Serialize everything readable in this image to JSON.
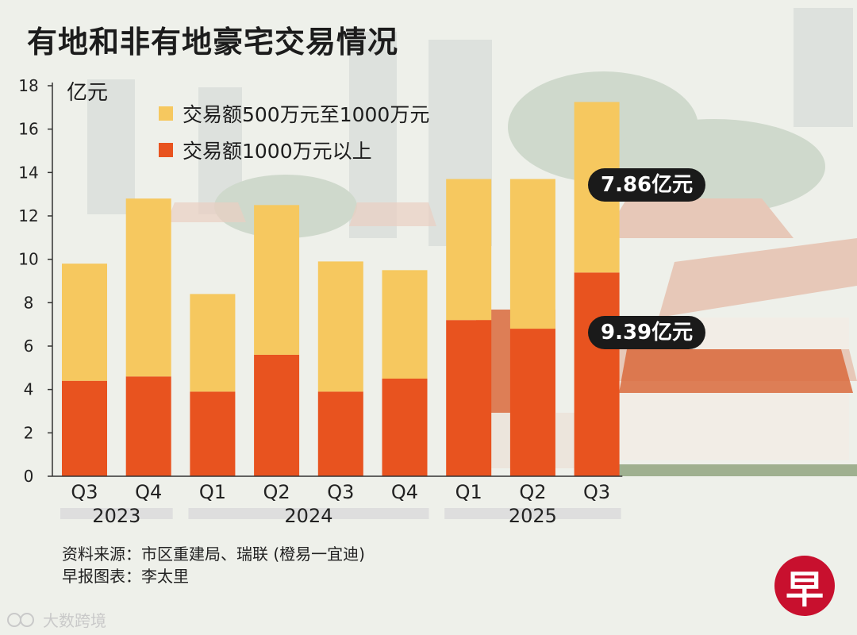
{
  "title": "有地和非有地豪宅交易情况",
  "colors": {
    "upper": "#f6c85f",
    "lower": "#e8531f",
    "axis": "#333333",
    "year_bar": "#dedede"
  },
  "chart_data": {
    "type": "bar",
    "stacked": true,
    "title": "有地和非有地豪宅交易情况",
    "ylabel": "亿元",
    "ylim": [
      0,
      18
    ],
    "yticks": [
      0,
      2,
      4,
      6,
      8,
      10,
      12,
      14,
      16,
      18
    ],
    "categories": [
      "Q3",
      "Q4",
      "Q1",
      "Q2",
      "Q3",
      "Q4",
      "Q1",
      "Q2",
      "Q3"
    ],
    "groups": [
      {
        "label": "2023",
        "from": 0,
        "to": 1
      },
      {
        "label": "2024",
        "from": 2,
        "to": 5
      },
      {
        "label": "2025",
        "from": 6,
        "to": 8
      }
    ],
    "series": [
      {
        "name": "交易额1000万元以上",
        "values": [
          4.4,
          4.6,
          3.9,
          5.6,
          3.9,
          4.5,
          7.2,
          6.8,
          9.39
        ]
      },
      {
        "name": "交易额500万元至1000万元",
        "values": [
          5.4,
          8.2,
          4.5,
          6.9,
          6.0,
          5.0,
          6.5,
          6.9,
          7.86
        ]
      }
    ],
    "legend": "top-left",
    "annotations": [
      "7.86亿元",
      "9.39亿元"
    ]
  },
  "source_lines": [
    "资料来源：市区重建局、瑞联 (橙易一宜迪)",
    "早报图表：李太里"
  ],
  "logo_text": "早",
  "watermark": "大数跨境"
}
